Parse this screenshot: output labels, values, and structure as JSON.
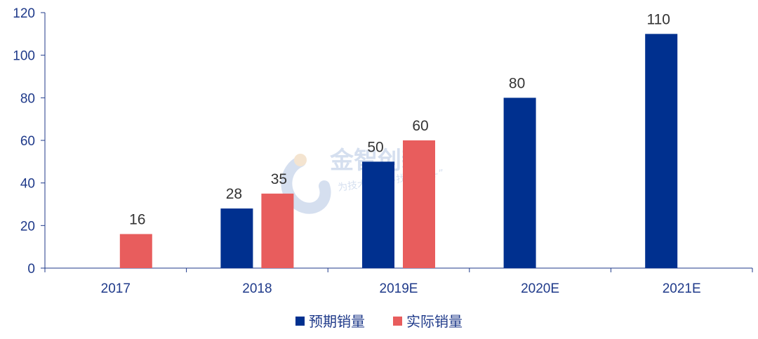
{
  "chart_data": {
    "type": "bar",
    "categories": [
      "2017",
      "2018",
      "2019E",
      "2020E",
      "2021E"
    ],
    "series": [
      {
        "name": "预期销量",
        "color": "#00308f",
        "values": [
          null,
          28,
          50,
          80,
          110
        ]
      },
      {
        "name": "实际销量",
        "color": "#e85d5d",
        "values": [
          16,
          35,
          60,
          null,
          null
        ]
      }
    ],
    "ylim": [
      0,
      120
    ],
    "yticks": [
      0,
      20,
      40,
      60,
      80,
      100,
      120
    ],
    "grid": false,
    "legend_position": "bottom-center"
  },
  "watermark": {
    "title": "金智创新",
    "subtitle": "为技术创新寻找一个“+”"
  }
}
